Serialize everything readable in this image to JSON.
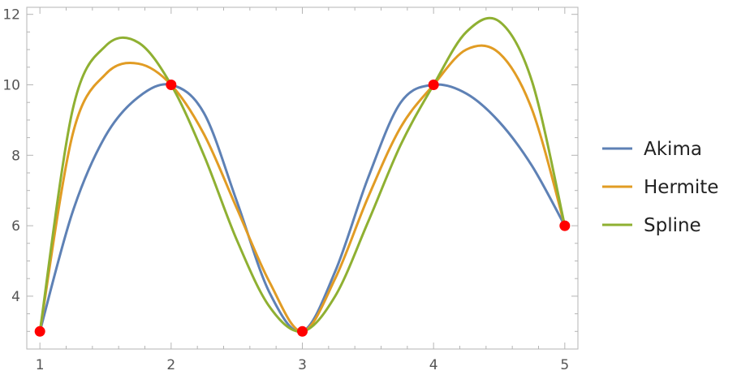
{
  "chart_data": {
    "type": "line",
    "title": "",
    "xlabel": "",
    "ylabel": "",
    "xlim": [
      0.9,
      5.1
    ],
    "ylim": [
      2.5,
      12.2
    ],
    "x_ticks": [
      1,
      2,
      3,
      4,
      5
    ],
    "y_ticks": [
      4,
      6,
      8,
      10,
      12
    ],
    "grid": false,
    "legend_position": "right",
    "points": {
      "x": [
        1,
        2,
        3,
        4,
        5
      ],
      "y": [
        3,
        10,
        3,
        10,
        6
      ],
      "color": "#ff0000"
    },
    "series": [
      {
        "name": "Akima",
        "color": "#5e81b5",
        "x": [
          1,
          1.25,
          1.5,
          1.75,
          2,
          2.25,
          2.5,
          2.75,
          3,
          3.25,
          3.5,
          3.75,
          4,
          4.25,
          4.5,
          4.75,
          5
        ],
        "y": [
          3,
          6.4,
          8.55,
          9.65,
          10,
          9.2,
          6.7,
          4.1,
          3,
          4.7,
          7.35,
          9.5,
          10,
          9.75,
          8.95,
          7.7,
          6
        ]
      },
      {
        "name": "Hermite",
        "color": "#e19c24",
        "x": [
          1,
          1.25,
          1.5,
          1.75,
          2,
          2.25,
          2.5,
          2.75,
          3,
          3.25,
          3.5,
          3.75,
          4,
          4.25,
          4.5,
          4.75,
          5
        ],
        "y": [
          3,
          8.6,
          10.3,
          10.6,
          10,
          8.6,
          6.5,
          4.4,
          3,
          4.5,
          6.8,
          8.8,
          10,
          11,
          10.9,
          9.3,
          6
        ]
      },
      {
        "name": "Spline",
        "color": "#8fb032",
        "x": [
          1,
          1.25,
          1.5,
          1.75,
          2,
          2.25,
          2.5,
          2.75,
          3,
          3.25,
          3.5,
          3.75,
          4,
          4.25,
          4.5,
          4.75,
          5
        ],
        "y": [
          3,
          9.3,
          11.1,
          11.2,
          10,
          8,
          5.6,
          3.7,
          3,
          4,
          6.1,
          8.3,
          10,
          11.5,
          11.8,
          10.1,
          6
        ]
      }
    ]
  }
}
